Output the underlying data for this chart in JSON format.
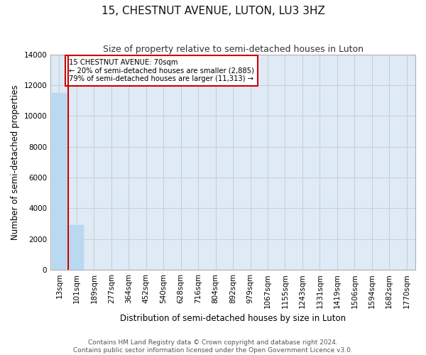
{
  "title": "15, CHESTNUT AVENUE, LUTON, LU3 3HZ",
  "subtitle": "Size of property relative to semi-detached houses in Luton",
  "xlabel": "Distribution of semi-detached houses by size in Luton",
  "ylabel": "Number of semi-detached properties",
  "categories": [
    "13sqm",
    "101sqm",
    "189sqm",
    "277sqm",
    "364sqm",
    "452sqm",
    "540sqm",
    "628sqm",
    "716sqm",
    "804sqm",
    "892sqm",
    "979sqm",
    "1067sqm",
    "1155sqm",
    "1243sqm",
    "1331sqm",
    "1419sqm",
    "1506sqm",
    "1594sqm",
    "1682sqm",
    "1770sqm"
  ],
  "values": [
    11500,
    2900,
    0,
    0,
    0,
    0,
    0,
    0,
    0,
    0,
    0,
    0,
    0,
    0,
    0,
    0,
    0,
    0,
    0,
    0,
    0
  ],
  "bar_color": "#b8d9f0",
  "bar_edge_color": "#b8d9f0",
  "ylim": [
    0,
    14000
  ],
  "yticks": [
    0,
    2000,
    4000,
    6000,
    8000,
    10000,
    12000,
    14000
  ],
  "property_line_x": 0.5,
  "annotation_text": "15 CHESTNUT AVENUE: 70sqm\n← 20% of semi-detached houses are smaller (2,885)\n79% of semi-detached houses are larger (11,313) →",
  "annotation_box_color": "#ffffff",
  "annotation_border_color": "#cc0000",
  "property_line_color": "#cc0000",
  "background_color": "#ffffff",
  "grid_color": "#cccccc",
  "footer_text": "Contains HM Land Registry data © Crown copyright and database right 2024.\nContains public sector information licensed under the Open Government Licence v3.0.",
  "title_fontsize": 11,
  "subtitle_fontsize": 9,
  "axis_label_fontsize": 8.5,
  "tick_fontsize": 7.5,
  "footer_fontsize": 6.5
}
